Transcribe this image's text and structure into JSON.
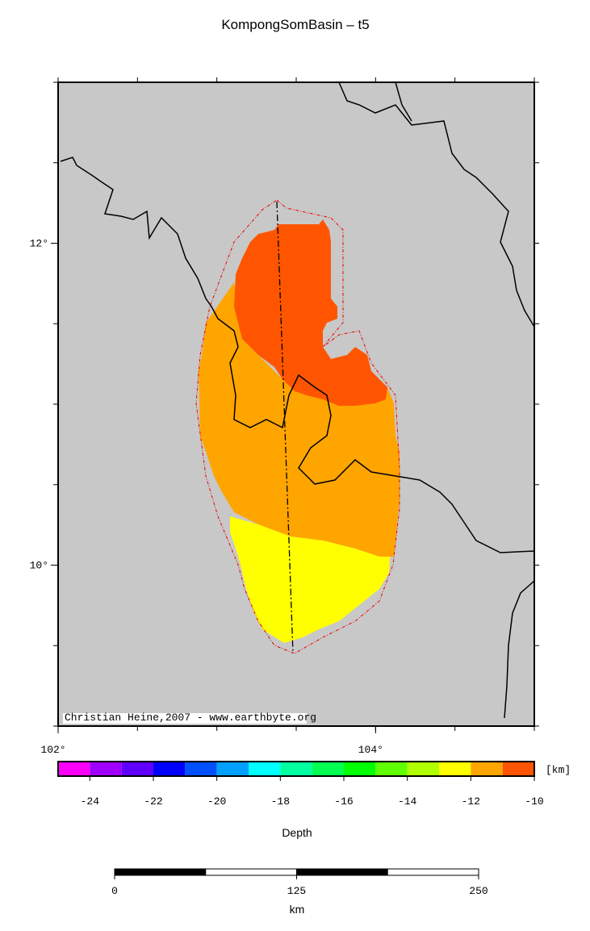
{
  "map": {
    "title": "KompongSomBasin – t5",
    "lon_range": [
      102,
      105
    ],
    "lat_range": [
      9,
      13
    ],
    "lon_ticks": [
      {
        "value": 102,
        "label": "102°"
      },
      {
        "value": 104,
        "label": "104°"
      }
    ],
    "lat_ticks": [
      {
        "value": 10,
        "label": "10°"
      },
      {
        "value": 12,
        "label": "12°"
      }
    ],
    "credit": "Christian Heine,2007 - www.earthbyte.org",
    "colorbar": {
      "range": [
        -25,
        -10
      ],
      "colors": [
        "#ff00ff",
        "#a000ff",
        "#6000ff",
        "#0000ff",
        "#0050ff",
        "#00a0ff",
        "#00ffff",
        "#00ffa0",
        "#00ff50",
        "#00ff00",
        "#60ff00",
        "#b0ff00",
        "#ffff00",
        "#ffa500",
        "#ff5500"
      ],
      "ticks": [
        -24,
        -22,
        -20,
        -18,
        -16,
        -14,
        -12,
        -10
      ],
      "unit": "[km]",
      "label": "Depth"
    },
    "scalebar": {
      "ticks": [
        0,
        125,
        250
      ],
      "unit": "km"
    }
  }
}
